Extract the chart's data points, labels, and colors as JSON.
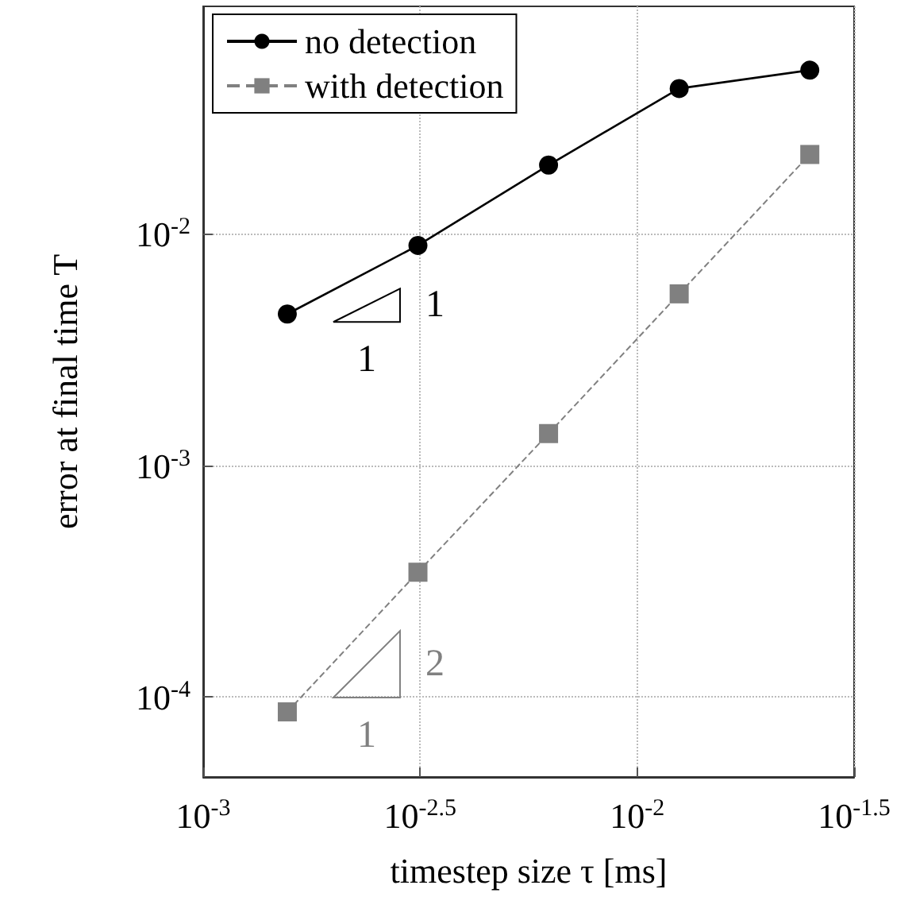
{
  "chart_data": {
    "type": "line",
    "xlabel": "timestep size τ [ms]",
    "ylabel": "error at final time T",
    "log": "xy",
    "grid": true,
    "legend": "top left",
    "x": [
      0.0015625,
      0.003125,
      0.00625,
      0.0125,
      0.025
    ],
    "xlim": [
      0.001,
      0.0316228
    ],
    "xticks": [
      {
        "value": 0.001,
        "label": "10$^{-3}$"
      },
      {
        "value": 0.00316228,
        "label": "10$^{-2.5}$"
      },
      {
        "value": 0.01,
        "label": "10$^{-2}$"
      },
      {
        "value": 0.0316228,
        "label": "10$^{-1.5}$"
      }
    ],
    "ylim": [
      4.5e-05,
      0.096
    ],
    "yticks": [
      {
        "value": 0.0001,
        "label": "10$^{-4}$"
      },
      {
        "value": 0.001,
        "label": "10$^{-3}$"
      },
      {
        "value": 0.01,
        "label": "10$^{-2}$"
      }
    ],
    "series": [
      {
        "name": "no detection",
        "color": "#000000",
        "marker": "circle",
        "line_style": "solid",
        "values": [
          0.0045,
          0.0089,
          0.0198,
          0.0424,
          0.0509
        ]
      },
      {
        "name": "with detection",
        "color": "#808080",
        "marker": "square",
        "line_style": "dashed",
        "values": [
          8.6e-05,
          0.000345,
          0.00137,
          0.0055,
          0.022
        ]
      }
    ],
    "annotations": [
      "1",
      "1",
      "2",
      "1"
    ]
  }
}
